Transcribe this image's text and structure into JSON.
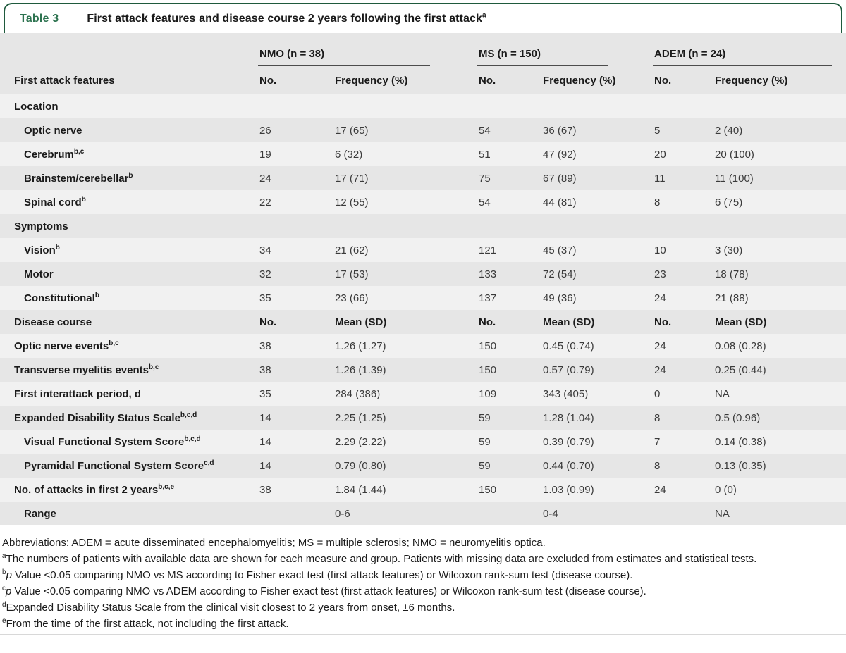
{
  "header": {
    "label": "Table 3",
    "title": "First attack features and disease course 2 years following the first attack",
    "title_sup": "a"
  },
  "colors": {
    "accent_green_text": "#2d7350",
    "border_green": "#1f5a3d",
    "row_light": "#f1f1f1",
    "row_dark": "#e6e6e6",
    "group_underline": "#4d4d4d"
  },
  "table": {
    "row_header": "First attack features",
    "no_label": "No.",
    "freq_label": "Frequency (%)",
    "groups": [
      {
        "label": "NMO (n = 38)"
      },
      {
        "label": "MS (n = 150)"
      },
      {
        "label": "ADEM (n = 24)"
      }
    ],
    "rows": [
      {
        "label": "Location",
        "section": true,
        "cells": [
          "",
          "",
          "",
          "",
          "",
          ""
        ]
      },
      {
        "label": "Optic nerve",
        "indent": true,
        "cells": [
          "26",
          "17 (65)",
          "54",
          "36 (67)",
          "5",
          "2 (40)"
        ]
      },
      {
        "label": "Cerebrum",
        "sup": "b,c",
        "indent": true,
        "cells": [
          "19",
          "6 (32)",
          "51",
          "47 (92)",
          "20",
          "20 (100)"
        ]
      },
      {
        "label": "Brainstem/cerebellar",
        "sup": "b",
        "indent": true,
        "cells": [
          "24",
          "17 (71)",
          "75",
          "67 (89)",
          "11",
          "11 (100)"
        ]
      },
      {
        "label": "Spinal cord",
        "sup": "b",
        "indent": true,
        "cells": [
          "22",
          "12 (55)",
          "54",
          "44 (81)",
          "8",
          "6 (75)"
        ]
      },
      {
        "label": "Symptoms",
        "section": true,
        "cells": [
          "",
          "",
          "",
          "",
          "",
          ""
        ]
      },
      {
        "label": "Vision",
        "sup": "b",
        "indent": true,
        "cells": [
          "34",
          "21 (62)",
          "121",
          "45 (37)",
          "10",
          "3 (30)"
        ]
      },
      {
        "label": "Motor",
        "indent": true,
        "cells": [
          "32",
          "17 (53)",
          "133",
          "72 (54)",
          "23",
          "18 (78)"
        ]
      },
      {
        "label": "Constitutional",
        "sup": "b",
        "indent": true,
        "cells": [
          "35",
          "23 (66)",
          "137",
          "49 (36)",
          "24",
          "21 (88)"
        ]
      },
      {
        "label": "Disease course",
        "section": true,
        "bold_cells": true,
        "cells": [
          "No.",
          "Mean (SD)",
          "No.",
          "Mean (SD)",
          "No.",
          "Mean (SD)"
        ]
      },
      {
        "label": "Optic nerve events",
        "sup": "b,c",
        "cells": [
          "38",
          "1.26 (1.27)",
          "150",
          "0.45 (0.74)",
          "24",
          "0.08 (0.28)"
        ]
      },
      {
        "label": "Transverse myelitis events",
        "sup": "b,c",
        "cells": [
          "38",
          "1.26 (1.39)",
          "150",
          "0.57 (0.79)",
          "24",
          "0.25 (0.44)"
        ]
      },
      {
        "label": "First interattack period, d",
        "cells": [
          "35",
          "284 (386)",
          "109",
          "343 (405)",
          "0",
          "NA"
        ]
      },
      {
        "label": "Expanded Disability Status Scale",
        "sup": "b,c,d",
        "cells": [
          "14",
          "2.25 (1.25)",
          "59",
          "1.28 (1.04)",
          "8",
          "0.5 (0.96)"
        ]
      },
      {
        "label": "Visual Functional System Score",
        "sup": "b,c,d",
        "indent": true,
        "cells": [
          "14",
          "2.29 (2.22)",
          "59",
          "0.39 (0.79)",
          "7",
          "0.14 (0.38)"
        ]
      },
      {
        "label": "Pyramidal Functional System Score",
        "sup": "c,d",
        "indent": true,
        "cells": [
          "14",
          "0.79 (0.80)",
          "59",
          "0.44 (0.70)",
          "8",
          "0.13 (0.35)"
        ]
      },
      {
        "label": "No. of attacks in first 2 years",
        "sup": "b,c,e",
        "cells": [
          "38",
          "1.84 (1.44)",
          "150",
          "1.03 (0.99)",
          "24",
          "0 (0)"
        ]
      },
      {
        "label": "Range",
        "indent": true,
        "cells": [
          "",
          "0-6",
          "",
          "0-4",
          "",
          "NA"
        ]
      }
    ]
  },
  "footnotes": [
    {
      "marker": "",
      "text": "Abbreviations: ADEM = acute disseminated encephalomyelitis; MS = multiple sclerosis; NMO = neuromyelitis optica."
    },
    {
      "marker": "a",
      "text": "The numbers of patients with available data are shown for each measure and group. Patients with missing data are excluded from estimates and statistical tests."
    },
    {
      "marker": "b",
      "italic": "p",
      "text": "Value <0.05 comparing NMO vs MS according to Fisher exact test (first attack features) or Wilcoxon rank-sum test (disease course)."
    },
    {
      "marker": "c",
      "italic": "p",
      "text": "Value <0.05 comparing NMO vs ADEM according to Fisher exact test (first attack features) or Wilcoxon rank-sum test (disease course)."
    },
    {
      "marker": "d",
      "text": "Expanded Disability Status Scale from the clinical visit closest to 2 years from onset, ±6 months."
    },
    {
      "marker": "e",
      "text": "From the time of the first attack, not including the first attack."
    }
  ]
}
